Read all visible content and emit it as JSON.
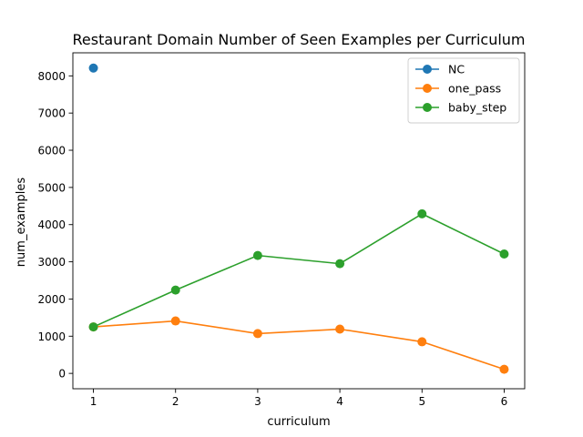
{
  "chart_data": {
    "type": "line",
    "title": "Restaurant Domain Number of Seen Examples per Curriculum",
    "xlabel": "curriculum",
    "ylabel": "num_examples",
    "xlim": [
      0.75,
      6.25
    ],
    "ylim": [
      -413,
      8620
    ],
    "xticks": [
      1,
      2,
      3,
      4,
      5,
      6
    ],
    "yticks": [
      0,
      1000,
      2000,
      3000,
      4000,
      5000,
      6000,
      7000,
      8000
    ],
    "grid": false,
    "legend_position": "top-right",
    "series": [
      {
        "name": "NC",
        "color": "#1f77b4",
        "x": [
          1
        ],
        "y": [
          8210
        ]
      },
      {
        "name": "one_pass",
        "color": "#ff7f0e",
        "x": [
          1,
          2,
          3,
          4,
          5,
          6
        ],
        "y": [
          1250,
          1410,
          1070,
          1190,
          850,
          110
        ]
      },
      {
        "name": "baby_step",
        "color": "#2ca02c",
        "x": [
          1,
          2,
          3,
          4,
          5,
          6
        ],
        "y": [
          1250,
          2240,
          3170,
          2950,
          4290,
          3210
        ]
      }
    ]
  }
}
